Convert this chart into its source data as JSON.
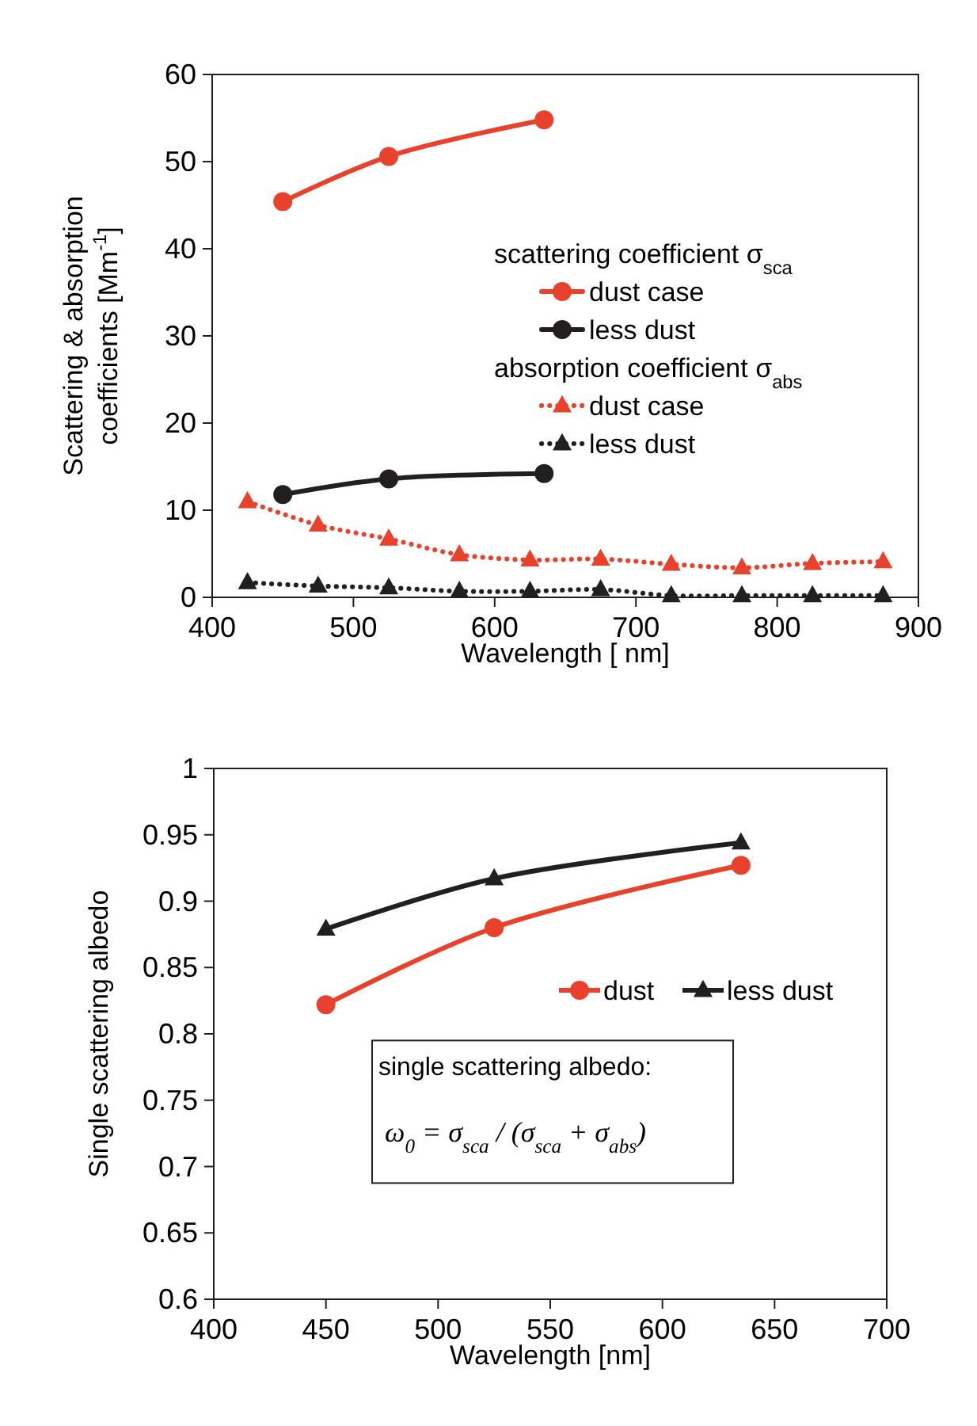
{
  "chart_data": [
    {
      "type": "line",
      "xlabel": "Wavelength [ nm]",
      "ylabel": "Scattering & absorption coefficients [Mm$^{-1}$]",
      "xlim": [
        400,
        900
      ],
      "xticks": [
        400,
        500,
        600,
        700,
        800,
        900
      ],
      "ylim": [
        0,
        60
      ],
      "yticks": [
        0,
        10,
        20,
        30,
        40,
        50,
        60
      ],
      "grid": false,
      "legend": "right",
      "annotations": [
        "scattering coefficient σ$_{sca}$",
        "absorption coefficient σ$_{abs}$"
      ],
      "series": [
        {
          "name": "dust case",
          "color": "#e8412c",
          "marker": "circle",
          "line_style": "solid",
          "x": [
            450,
            525,
            635
          ],
          "values": [
            45.4,
            50.6,
            54.8
          ]
        },
        {
          "name": "less dust",
          "color": "#231f20",
          "marker": "circle",
          "line_style": "solid",
          "x": [
            450,
            525,
            635
          ],
          "values": [
            11.8,
            13.6,
            14.2
          ]
        },
        {
          "name": "dust case",
          "color": "#e8412c",
          "marker": "triangle",
          "line_style": "dotted",
          "x": [
            425,
            475,
            525,
            575,
            625,
            675,
            725,
            775,
            825,
            875
          ],
          "values": [
            11,
            8.3,
            6.7,
            4.9,
            4.3,
            4.4,
            3.8,
            3.4,
            3.9,
            4.1
          ]
        },
        {
          "name": "less dust",
          "color": "#231f20",
          "marker": "triangle",
          "line_style": "dotted",
          "x": [
            425,
            475,
            525,
            575,
            625,
            675,
            725,
            775,
            825,
            875
          ],
          "values": [
            1.7,
            1.3,
            1.1,
            0.7,
            0.7,
            0.9,
            0.2,
            0.2,
            0.2,
            0.2
          ]
        }
      ]
    },
    {
      "type": "line",
      "xlabel": "Wavelength [nm]",
      "ylabel": "Single scattering albedo",
      "xlim": [
        400,
        700
      ],
      "xticks": [
        400,
        450,
        500,
        550,
        600,
        650,
        700
      ],
      "ylim": [
        0.6,
        1
      ],
      "yticks": [
        0.6,
        0.65,
        0.7,
        0.75,
        0.8,
        0.85,
        0.9,
        0.95,
        1
      ],
      "grid": false,
      "legend": "right",
      "annotations": [
        "single scattering albedo:",
        "ω$_{0}$ = σ$_{sca}$ / (σ$_{sca}$ + σ$_{abs}$)"
      ],
      "series": [
        {
          "name": "dust",
          "color": "#e8412c",
          "marker": "circle",
          "line_style": "solid",
          "x": [
            450,
            525,
            635
          ],
          "values": [
            0.822,
            0.88,
            0.927
          ]
        },
        {
          "name": "less dust",
          "color": "#231f20",
          "marker": "triangle",
          "line_style": "solid",
          "x": [
            450,
            525,
            635
          ],
          "values": [
            0.879,
            0.917,
            0.944
          ]
        }
      ]
    }
  ]
}
